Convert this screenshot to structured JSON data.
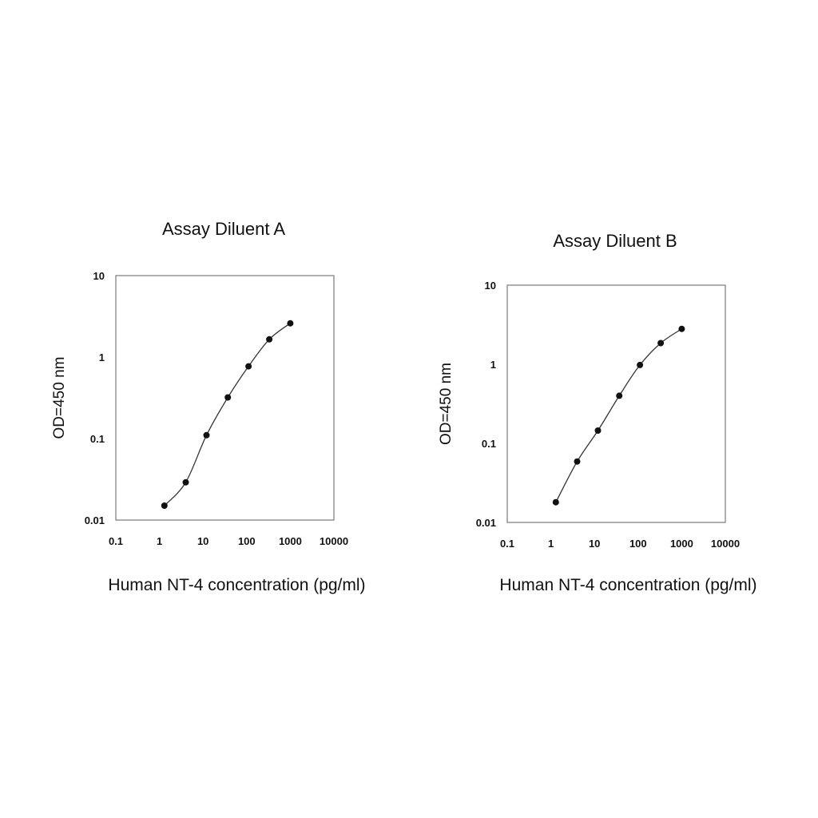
{
  "chart_data": [
    {
      "type": "line",
      "title": "Assay Diluent A",
      "xlabel": "Human NT-4  concentration (pg/ml)",
      "ylabel": "OD=450 nm",
      "x_scale": "log",
      "y_scale": "log",
      "xlim": [
        0.1,
        10000
      ],
      "ylim": [
        0.01,
        10
      ],
      "x_ticks": [
        "0.1",
        "1",
        "10",
        "100",
        "1000",
        "10000"
      ],
      "y_ticks": [
        "0.01",
        "0.1",
        "1",
        "10"
      ],
      "grid": false,
      "series": [
        {
          "x": [
            1.3,
            4,
            12,
            37,
            110,
            330,
            1000
          ],
          "y": [
            0.015,
            0.029,
            0.11,
            0.32,
            0.77,
            1.65,
            2.6
          ]
        }
      ]
    },
    {
      "type": "line",
      "title": "Assay Diluent B",
      "xlabel": "Human NT-4  concentration (pg/ml)",
      "ylabel": "OD=450 nm",
      "x_scale": "log",
      "y_scale": "log",
      "xlim": [
        0.1,
        10000
      ],
      "ylim": [
        0.01,
        10
      ],
      "x_ticks": [
        "0.1",
        "1",
        "10",
        "100",
        "1000",
        "10000"
      ],
      "y_ticks": [
        "0.01",
        "0.1",
        "1",
        "10"
      ],
      "grid": false,
      "series": [
        {
          "x": [
            1.3,
            4,
            12,
            37,
            110,
            330,
            1000
          ],
          "y": [
            0.018,
            0.059,
            0.145,
            0.4,
            0.98,
            1.85,
            2.8
          ]
        }
      ]
    }
  ]
}
